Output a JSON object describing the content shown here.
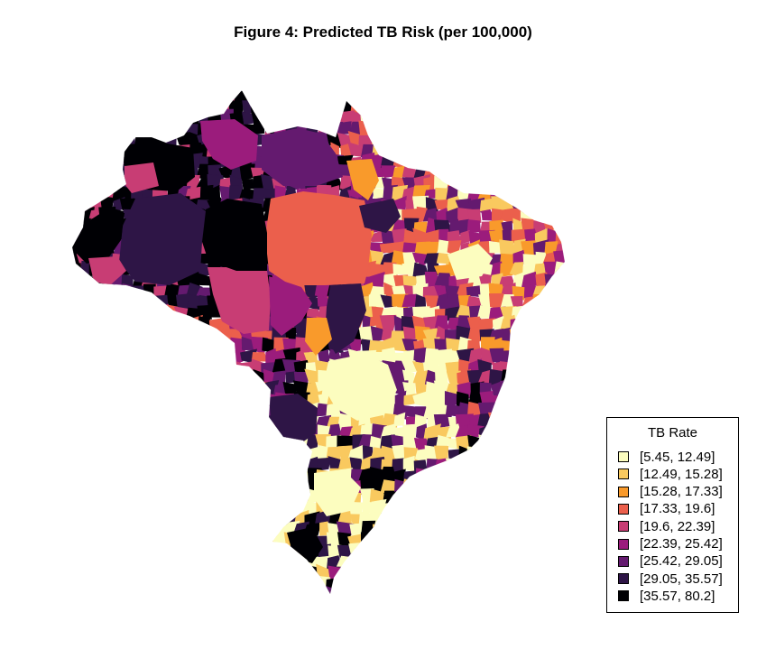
{
  "title": "Figure 4: Predicted TB Risk (per 100,000)",
  "legend": {
    "title": "TB Rate",
    "position": "bottom-right",
    "items": [
      {
        "label": "[5.45, 12.49]",
        "color": "#fcfdbf"
      },
      {
        "label": "[12.49, 15.28]",
        "color": "#f9c95f"
      },
      {
        "label": "[15.28, 17.33]",
        "color": "#f99a2b"
      },
      {
        "label": "[17.33, 19.6]",
        "color": "#eb5f4c"
      },
      {
        "label": "[19.6, 22.39]",
        "color": "#c83d74"
      },
      {
        "label": "[22.39, 25.42]",
        "color": "#9b1c7c"
      },
      {
        "label": "[25.42, 29.05]",
        "color": "#641a6f"
      },
      {
        "label": "[29.05, 35.57]",
        "color": "#2e1546"
      },
      {
        "label": "[35.57, 80.2]",
        "color": "#000004"
      }
    ]
  }
}
